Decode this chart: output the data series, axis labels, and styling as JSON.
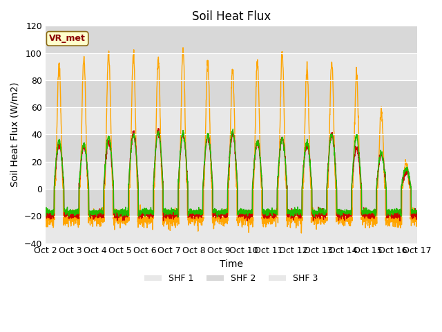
{
  "title": "Soil Heat Flux",
  "ylabel": "Soil Heat Flux (W/m2)",
  "xlabel": "Time",
  "ylim": [
    -40,
    120
  ],
  "yticks": [
    -40,
    -20,
    0,
    20,
    40,
    60,
    80,
    100,
    120
  ],
  "xtick_labels": [
    "Oct 2",
    "Oct 3",
    "Oct 4",
    "Oct 5",
    "Oct 6",
    "Oct 7",
    "Oct 8",
    "Oct 9",
    "Oct 10",
    "Oct 11",
    "Oct 12",
    "Oct 13",
    "Oct 14",
    "Oct 15",
    "Oct 16",
    "Oct 17"
  ],
  "legend_label": "VR_met",
  "series_labels": [
    "SHF 1",
    "SHF 2",
    "SHF 3"
  ],
  "colors": [
    "#cc0000",
    "#ffa500",
    "#22bb00"
  ],
  "fig_facecolor": "#ffffff",
  "plot_bg_color": "#e8e8e8",
  "n_days": 15,
  "title_fontsize": 12,
  "axis_label_fontsize": 10,
  "tick_fontsize": 9,
  "band_colors": [
    "#e8e8e8",
    "#d8d8d8"
  ]
}
